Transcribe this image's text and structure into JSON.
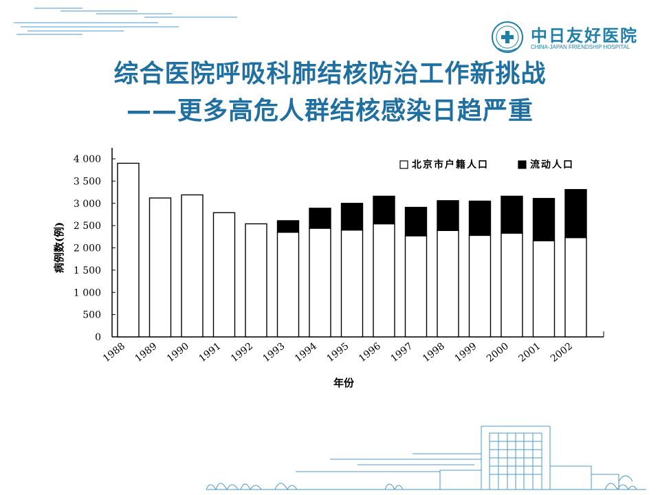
{
  "slide": {
    "title_line1": "综合医院呼吸科肺结核防治工作新挑战",
    "title_line2": "——更多高危人群结核感染日趋严重"
  },
  "logo": {
    "name_cn": "中日友好医院",
    "name_en": "CHINA-JAPAN FRIENDSHIP HOSPITAL",
    "seal_text": "中日友好医院"
  },
  "colors": {
    "title": "#1f6fa0",
    "brand": "#1f7fa8",
    "deco": "#4a98c8",
    "bar_fill_resident": "#ffffff",
    "bar_fill_migrant": "#000000"
  },
  "chart_data": {
    "type": "bar",
    "stacked": true,
    "categories": [
      "1988",
      "1989",
      "1990",
      "1991",
      "1992",
      "1993",
      "1994",
      "1995",
      "1996",
      "1997",
      "1998",
      "1999",
      "2000",
      "2001",
      "2002"
    ],
    "series": [
      {
        "name": "北京市户籍人口",
        "values": [
          3900,
          3120,
          3190,
          2790,
          2540,
          2350,
          2440,
          2400,
          2540,
          2270,
          2390,
          2280,
          2330,
          2160,
          2230
        ]
      },
      {
        "name": "流动人口",
        "values": [
          0,
          0,
          0,
          0,
          0,
          260,
          450,
          600,
          620,
          640,
          670,
          770,
          830,
          950,
          1080
        ]
      }
    ],
    "ylabel": "病例数(例)",
    "xlabel": "年份",
    "ylim": [
      0,
      4200
    ],
    "yticks": [
      0,
      500,
      1000,
      1500,
      2000,
      2500,
      3000,
      3500,
      4000
    ],
    "ytick_labels": [
      "0",
      "500",
      "1 000",
      "1 500",
      "2 000",
      "2 500",
      "3 000",
      "3 500",
      "4 000"
    ],
    "legend_position": "top-right",
    "grid": false
  }
}
